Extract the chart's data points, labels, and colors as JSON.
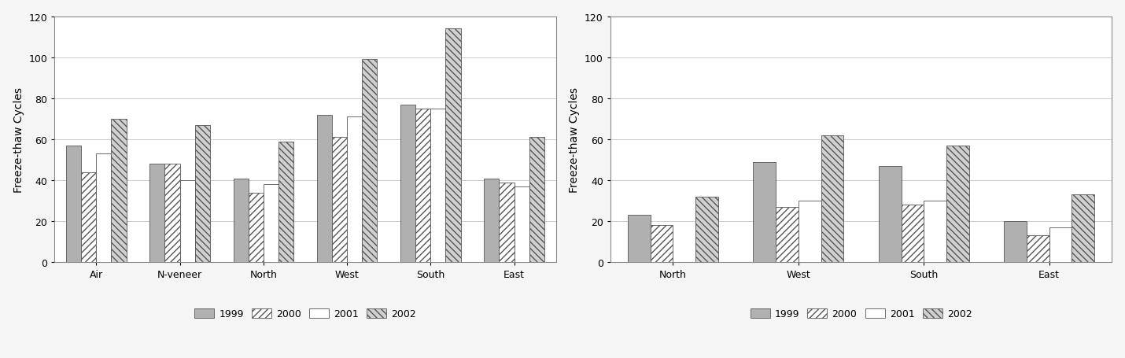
{
  "chart1": {
    "categories": [
      "Air",
      "N-veneer",
      "North",
      "West",
      "South",
      "East"
    ],
    "series": {
      "1999": [
        57,
        48,
        41,
        72,
        77,
        41
      ],
      "2000": [
        44,
        48,
        34,
        61,
        75,
        39
      ],
      "2001": [
        53,
        40,
        38,
        71,
        75,
        37
      ],
      "2002": [
        70,
        67,
        59,
        99,
        114,
        61
      ]
    },
    "ylabel": "Freeze-thaw Cycles",
    "ylim": [
      0,
      120
    ],
    "yticks": [
      0,
      20,
      40,
      60,
      80,
      100,
      120
    ]
  },
  "chart2": {
    "categories": [
      "North",
      "West",
      "South",
      "East"
    ],
    "series": {
      "1999": [
        23,
        49,
        47,
        20
      ],
      "2000": [
        18,
        27,
        28,
        13
      ],
      "2001": [
        0,
        30,
        30,
        17
      ],
      "2002": [
        32,
        62,
        57,
        33
      ]
    },
    "ylabel": "Freeze-thaw Cycles",
    "ylim": [
      0,
      120
    ],
    "yticks": [
      0,
      20,
      40,
      60,
      80,
      100,
      120
    ]
  },
  "legend_labels": [
    "1999",
    "2000",
    "2001",
    "2002"
  ],
  "bar_width": 0.18,
  "face_colors": {
    "1999": "#b0b0b0",
    "2000": "#ffffff",
    "2001": "#ffffff",
    "2002": "#d0d0d0"
  },
  "hatches": {
    "1999": "",
    "2000": "////",
    "2001": "",
    "2002": "\\\\\\\\"
  },
  "edge_colors": {
    "1999": "#555555",
    "2000": "#555555",
    "2001": "#555555",
    "2002": "#555555"
  },
  "background_color": "#f5f5f5",
  "plot_bg_color": "#ffffff",
  "grid_color": "#cccccc",
  "fontsize_label": 10,
  "fontsize_tick": 9,
  "fontsize_legend": 9,
  "outer_bg": "#e8e8e8"
}
